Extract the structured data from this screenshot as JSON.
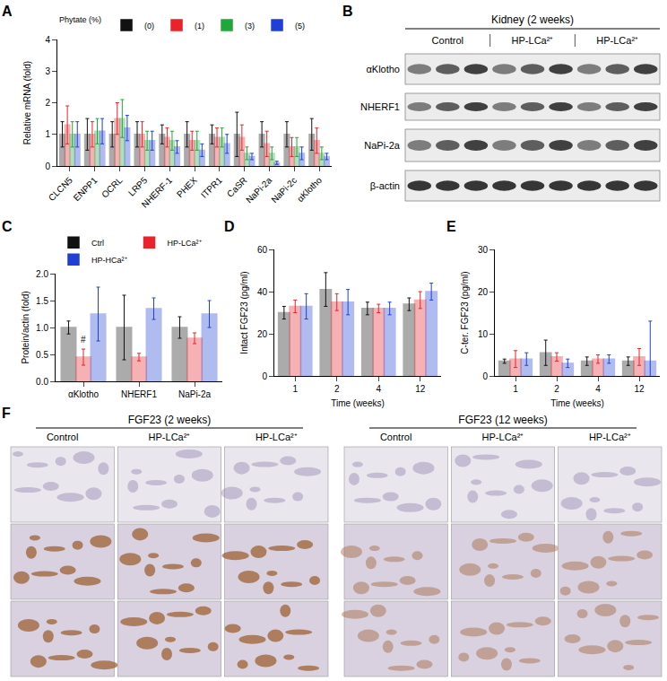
{
  "panel_labels": [
    "A",
    "B",
    "C",
    "D",
    "E",
    "F"
  ],
  "chart_data": [
    {
      "type": "bar",
      "ylabel": "Relative mRNA (fold)",
      "legend": "top",
      "legend_title": "Phytate (%)",
      "grid": false,
      "categories": [
        "CLCN5",
        "ENPP1",
        "OCRL",
        "LRP5",
        "NHERF-1",
        "PHEX",
        "ITPR1",
        "CaSR",
        "NaPi-2a",
        "NaPi-2c",
        "αKlotho"
      ],
      "ylim": [
        0,
        4
      ],
      "yticks": [
        0,
        1,
        2,
        3,
        4
      ],
      "series": [
        {
          "name": "(0)",
          "color": "#111111",
          "values": [
            1,
            1,
            1,
            1,
            1,
            1,
            1,
            1,
            1,
            1,
            1
          ],
          "error": [
            0.4,
            0.5,
            0.4,
            0.4,
            0.3,
            0.4,
            0.3,
            0.7,
            0.4,
            0.4,
            0.5
          ]
        },
        {
          "name": "(1)",
          "color": "#e8232a",
          "values": [
            1.3,
            1.0,
            1.5,
            1.0,
            0.9,
            0.8,
            0.9,
            0.9,
            0.7,
            0.6,
            0.8
          ],
          "error": [
            0.6,
            0.4,
            0.5,
            0.4,
            0.3,
            0.3,
            0.3,
            0.4,
            0.4,
            0.3,
            0.4
          ]
        },
        {
          "name": "(3)",
          "color": "#21a63b",
          "values": [
            1.0,
            1.1,
            1.5,
            0.8,
            0.8,
            0.8,
            0.9,
            0.4,
            0.4,
            0.6,
            0.4
          ],
          "error": [
            0.4,
            0.4,
            0.6,
            0.3,
            0.3,
            0.3,
            0.3,
            0.2,
            0.2,
            0.3,
            0.2
          ]
        },
        {
          "name": "(5)",
          "color": "#1f3fd6",
          "values": [
            1.0,
            1.1,
            1.2,
            0.8,
            0.6,
            0.5,
            0.7,
            0.3,
            0.1,
            0.4,
            0.3
          ],
          "error": [
            0.4,
            0.4,
            0.4,
            0.3,
            0.2,
            0.2,
            0.3,
            0.1,
            0.05,
            0.2,
            0.1
          ]
        }
      ]
    },
    {
      "type": "bar",
      "ylabel": "Protein/actin (fold)",
      "legend": "top",
      "grid": false,
      "categories": [
        "αKlotho",
        "NHERF1",
        "NaPi-2a"
      ],
      "ylim": [
        0,
        2
      ],
      "yticks": [
        {
          "value": 0,
          "label": "0.0"
        },
        {
          "value": 0.5,
          "label": "0.5"
        },
        {
          "value": 1,
          "label": "1.0"
        },
        {
          "value": 1.5,
          "label": "1.5"
        },
        {
          "value": 2,
          "label": "2.0"
        }
      ],
      "series": [
        {
          "name": "Ctrl",
          "color": "#111111",
          "values": [
            1.0,
            1.0,
            1.0
          ],
          "error": [
            0.12,
            0.6,
            0.2
          ]
        },
        {
          "name": "HP-LCa²⁺",
          "color": "#e8232a",
          "values": [
            0.45,
            0.45,
            0.8
          ],
          "error": [
            0.15,
            0.07,
            0.1
          ]
        },
        {
          "name": "HP-HCa²⁺",
          "color": "#1f3fd6",
          "values": [
            1.25,
            1.35,
            1.25
          ],
          "error": [
            0.5,
            0.2,
            0.25
          ]
        }
      ],
      "annotations": [
        {
          "text": "#",
          "category": "αKlotho",
          "series": "HP-LCa²⁺",
          "y": 0.65
        }
      ]
    },
    {
      "type": "bar",
      "ylabel": "Intact FGF23 (pg/ml)",
      "xlabel": "Time (weeks)",
      "grid": false,
      "categories": [
        "1",
        "2",
        "4",
        "12"
      ],
      "ylim": [
        0,
        60
      ],
      "yticks": [
        0,
        20,
        40,
        60
      ],
      "series": [
        {
          "name": "Ctrl",
          "color": "#111111",
          "values": [
            30,
            41,
            32,
            34
          ],
          "error": [
            3,
            8,
            3,
            3
          ]
        },
        {
          "name": "HP-LCa²⁺",
          "color": "#e8232a",
          "values": [
            33,
            35,
            32,
            36
          ],
          "error": [
            3,
            4,
            2,
            4
          ]
        },
        {
          "name": "HP-HCa²⁺",
          "color": "#1f3fd6",
          "values": [
            33,
            35,
            32,
            40
          ],
          "error": [
            6,
            6,
            3,
            4
          ]
        }
      ]
    },
    {
      "type": "bar",
      "ylabel": "C-ter. FGF23 (pg/ml)",
      "xlabel": "Time (weeks)",
      "grid": false,
      "categories": [
        "1",
        "2",
        "4",
        "12"
      ],
      "ylim": [
        0,
        30
      ],
      "yticks": [
        0,
        10,
        20,
        30
      ],
      "series": [
        {
          "name": "Ctrl",
          "color": "#111111",
          "values": [
            3.5,
            5.5,
            3.5,
            3.5
          ],
          "error": [
            0.5,
            3,
            1,
            1
          ]
        },
        {
          "name": "HP-LCa²⁺",
          "color": "#e8232a",
          "values": [
            4,
            4.5,
            4,
            4.5
          ],
          "error": [
            2,
            1,
            1,
            2
          ]
        },
        {
          "name": "HP-HCa²⁺",
          "color": "#1f3fd6",
          "values": [
            4,
            3,
            4,
            3.5
          ],
          "error": [
            1.5,
            1,
            1,
            9.5
          ]
        }
      ]
    }
  ],
  "blot": {
    "title": "Kidney (2 weeks)",
    "groups": [
      "Control",
      "HP-LCa²⁺",
      "HP-LCa²⁺"
    ],
    "rows": [
      "αKlotho",
      "NHERF1",
      "NaPi-2a",
      "β-actin"
    ]
  },
  "histology": [
    {
      "title": "FGF23 (2 weeks)",
      "columns": [
        "Control",
        "HP-LCa²⁺",
        "HP-LCa²⁺"
      ]
    },
    {
      "title": "FGF23 (12 weeks)",
      "columns": [
        "Control",
        "HP-LCa²⁺",
        "HP-LCa²⁺"
      ]
    }
  ]
}
